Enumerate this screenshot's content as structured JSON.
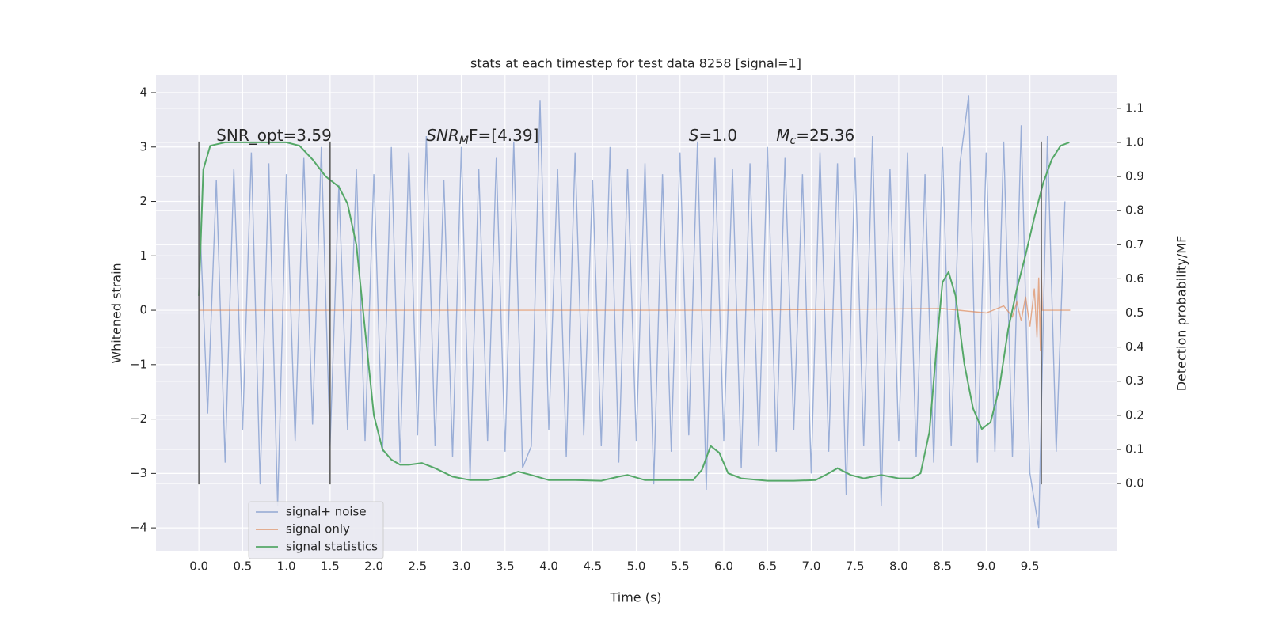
{
  "chart_data": {
    "type": "line",
    "title": "stats at each timestep for test data 8258 [signal=1]",
    "xlabel": "Time (s)",
    "ylabel": "Whitened strain",
    "y2label": "Detection probability/MF",
    "xlim": [
      -0.49,
      10.49
    ],
    "ylim": [
      -4.42,
      4.32
    ],
    "y2lim": [
      -0.197,
      1.197
    ],
    "xticks": [
      {
        "value": 0,
        "label": "0.0"
      },
      {
        "value": 0.5,
        "label": "0.5"
      },
      {
        "value": 1,
        "label": "1.0"
      },
      {
        "value": 1.5,
        "label": "1.5"
      },
      {
        "value": 2,
        "label": "2.0"
      },
      {
        "value": 2.5,
        "label": "2.5"
      },
      {
        "value": 3,
        "label": "3.0"
      },
      {
        "value": 3.5,
        "label": "3.5"
      },
      {
        "value": 4,
        "label": "4.0"
      },
      {
        "value": 4.5,
        "label": "4.5"
      },
      {
        "value": 5,
        "label": "5.0"
      },
      {
        "value": 5.5,
        "label": "5.5"
      },
      {
        "value": 6,
        "label": "6.0"
      },
      {
        "value": 6.5,
        "label": "6.5"
      },
      {
        "value": 7,
        "label": "7.0"
      },
      {
        "value": 7.5,
        "label": "7.5"
      },
      {
        "value": 8,
        "label": "8.0"
      },
      {
        "value": 8.5,
        "label": "8.5"
      },
      {
        "value": 9,
        "label": "9.0"
      },
      {
        "value": 9.5,
        "label": "9.5"
      }
    ],
    "yticks": [
      4,
      3,
      2,
      1,
      0,
      {
        "value": -1,
        "label": "−1"
      },
      {
        "value": -2,
        "label": "−2"
      },
      {
        "value": -3,
        "label": "−3"
      },
      {
        "value": -4,
        "label": "−4"
      }
    ],
    "y2ticks": [
      {
        "value": 0,
        "label": "0.0"
      },
      {
        "value": 0.1,
        "label": "0.1"
      },
      {
        "value": 0.2,
        "label": "0.2"
      },
      {
        "value": 0.3,
        "label": "0.3"
      },
      {
        "value": 0.4,
        "label": "0.4"
      },
      {
        "value": 0.5,
        "label": "0.5"
      },
      {
        "value": 0.6,
        "label": "0.6"
      },
      {
        "value": 0.7,
        "label": "0.7"
      },
      {
        "value": 0.8,
        "label": "0.8"
      },
      {
        "value": 0.9,
        "label": "0.9"
      },
      {
        "value": 1.0,
        "label": "1.0"
      },
      {
        "value": 1.1,
        "label": "1.1"
      }
    ],
    "grid": true,
    "legend": "lower left",
    "vlines": {
      "x": [
        0,
        1.5,
        9.63
      ],
      "ymin": -3.2,
      "ymax": 3.1,
      "color": "#555555"
    },
    "annotations": [
      {
        "x": 0.2,
        "y": 3.2,
        "base": "SNR_opt=3.59"
      },
      {
        "x": 2.6,
        "y": 3.2,
        "italic": "SNR",
        "sub": "M",
        "tail": "F=[4.39]"
      },
      {
        "x": 5.6,
        "y": 3.2,
        "italic": "S",
        "tail": "=1.0"
      },
      {
        "x": 6.6,
        "y": 3.2,
        "italic": "M",
        "sub": "c",
        "tail": "=25.36"
      }
    ],
    "series": [
      {
        "name": "signal+ noise",
        "color": "#7f9acd",
        "x": [
          0.0,
          0.1,
          0.2,
          0.3,
          0.4,
          0.5,
          0.6,
          0.7,
          0.8,
          0.9,
          1.0,
          1.1,
          1.2,
          1.3,
          1.4,
          1.5,
          1.6,
          1.7,
          1.8,
          1.9,
          2.0,
          2.1,
          2.2,
          2.3,
          2.4,
          2.5,
          2.6,
          2.7,
          2.8,
          2.9,
          3.0,
          3.1,
          3.2,
          3.3,
          3.4,
          3.5,
          3.6,
          3.7,
          3.8,
          3.9,
          4.0,
          4.1,
          4.2,
          4.3,
          4.4,
          4.5,
          4.6,
          4.7,
          4.8,
          4.9,
          5.0,
          5.1,
          5.2,
          5.3,
          5.4,
          5.5,
          5.6,
          5.7,
          5.8,
          5.9,
          6.0,
          6.1,
          6.2,
          6.3,
          6.4,
          6.5,
          6.6,
          6.7,
          6.8,
          6.9,
          7.0,
          7.1,
          7.2,
          7.3,
          7.4,
          7.5,
          7.6,
          7.7,
          7.8,
          7.9,
          8.0,
          8.1,
          8.2,
          8.3,
          8.4,
          8.5,
          8.6,
          8.7,
          8.8,
          8.9,
          9.0,
          9.1,
          9.2,
          9.3,
          9.4,
          9.5,
          9.6,
          9.7,
          9.8,
          9.9
        ],
        "values": [
          2.1,
          -1.9,
          2.4,
          -2.8,
          2.6,
          -2.2,
          2.9,
          -3.2,
          2.7,
          -3.6,
          2.5,
          -2.4,
          2.8,
          -2.1,
          3.0,
          -2.5,
          2.3,
          -2.2,
          2.6,
          -2.4,
          2.5,
          -2.6,
          3.0,
          -2.8,
          2.9,
          -2.3,
          3.2,
          -2.5,
          2.4,
          -2.7,
          3.0,
          -3.1,
          2.6,
          -2.4,
          2.8,
          -2.6,
          3.1,
          -2.9,
          -2.5,
          3.85,
          -2.2,
          2.6,
          -2.7,
          2.9,
          -2.3,
          2.4,
          -2.5,
          3.0,
          -2.8,
          2.6,
          -2.4,
          2.7,
          -3.2,
          2.5,
          -2.6,
          2.9,
          -2.3,
          3.1,
          -3.3,
          2.8,
          -2.4,
          2.6,
          -2.9,
          2.7,
          -2.5,
          3.0,
          -2.6,
          2.8,
          -2.2,
          2.5,
          -3.0,
          2.9,
          -2.6,
          2.7,
          -3.4,
          2.8,
          -2.5,
          3.2,
          -3.6,
          2.6,
          -2.4,
          2.9,
          -2.7,
          2.5,
          -2.8,
          3.0,
          -2.5,
          2.7,
          3.95,
          -2.8,
          2.9,
          -2.6,
          3.1,
          -2.7,
          3.4,
          -3.0,
          -4.0,
          3.2,
          -2.6,
          2.0
        ]
      },
      {
        "name": "signal only",
        "color": "#dd8452",
        "x": [
          0,
          6.0,
          8.5,
          9.0,
          9.2,
          9.3,
          9.35,
          9.4,
          9.45,
          9.5,
          9.55,
          9.58,
          9.6,
          9.62,
          9.63,
          9.64,
          9.96
        ],
        "values": [
          0,
          0,
          0.03,
          -0.05,
          0.08,
          -0.12,
          0.15,
          -0.2,
          0.25,
          -0.3,
          0.4,
          -0.5,
          0.6,
          -0.75,
          0.75,
          0,
          0
        ]
      },
      {
        "name": "signal statistics",
        "color": "#55a868",
        "axis": "y2",
        "x": [
          0,
          0.05,
          0.13,
          0.3,
          1.0,
          1.15,
          1.3,
          1.45,
          1.6,
          1.7,
          1.8,
          1.9,
          2.0,
          2.1,
          2.2,
          2.3,
          2.4,
          2.55,
          2.7,
          2.9,
          3.1,
          3.3,
          3.5,
          3.65,
          3.8,
          4.0,
          4.3,
          4.6,
          4.8,
          4.9,
          5.1,
          5.4,
          5.65,
          5.75,
          5.85,
          5.95,
          6.05,
          6.2,
          6.5,
          6.8,
          7.05,
          7.2,
          7.3,
          7.45,
          7.6,
          7.8,
          8.0,
          8.15,
          8.25,
          8.35,
          8.45,
          8.5,
          8.57,
          8.65,
          8.75,
          8.85,
          8.95,
          9.05,
          9.15,
          9.25,
          9.35,
          9.45,
          9.55,
          9.65,
          9.75,
          9.85,
          9.95
        ],
        "values": [
          0.55,
          0.92,
          0.99,
          1.0,
          1.0,
          0.99,
          0.95,
          0.9,
          0.87,
          0.82,
          0.7,
          0.45,
          0.2,
          0.1,
          0.07,
          0.055,
          0.055,
          0.06,
          0.045,
          0.02,
          0.01,
          0.01,
          0.02,
          0.035,
          0.025,
          0.01,
          0.01,
          0.008,
          0.02,
          0.025,
          0.01,
          0.01,
          0.01,
          0.04,
          0.11,
          0.09,
          0.03,
          0.015,
          0.008,
          0.008,
          0.01,
          0.03,
          0.045,
          0.025,
          0.015,
          0.025,
          0.015,
          0.015,
          0.03,
          0.15,
          0.45,
          0.59,
          0.62,
          0.55,
          0.35,
          0.22,
          0.16,
          0.18,
          0.28,
          0.45,
          0.57,
          0.67,
          0.78,
          0.88,
          0.95,
          0.99,
          1.0
        ]
      }
    ]
  }
}
